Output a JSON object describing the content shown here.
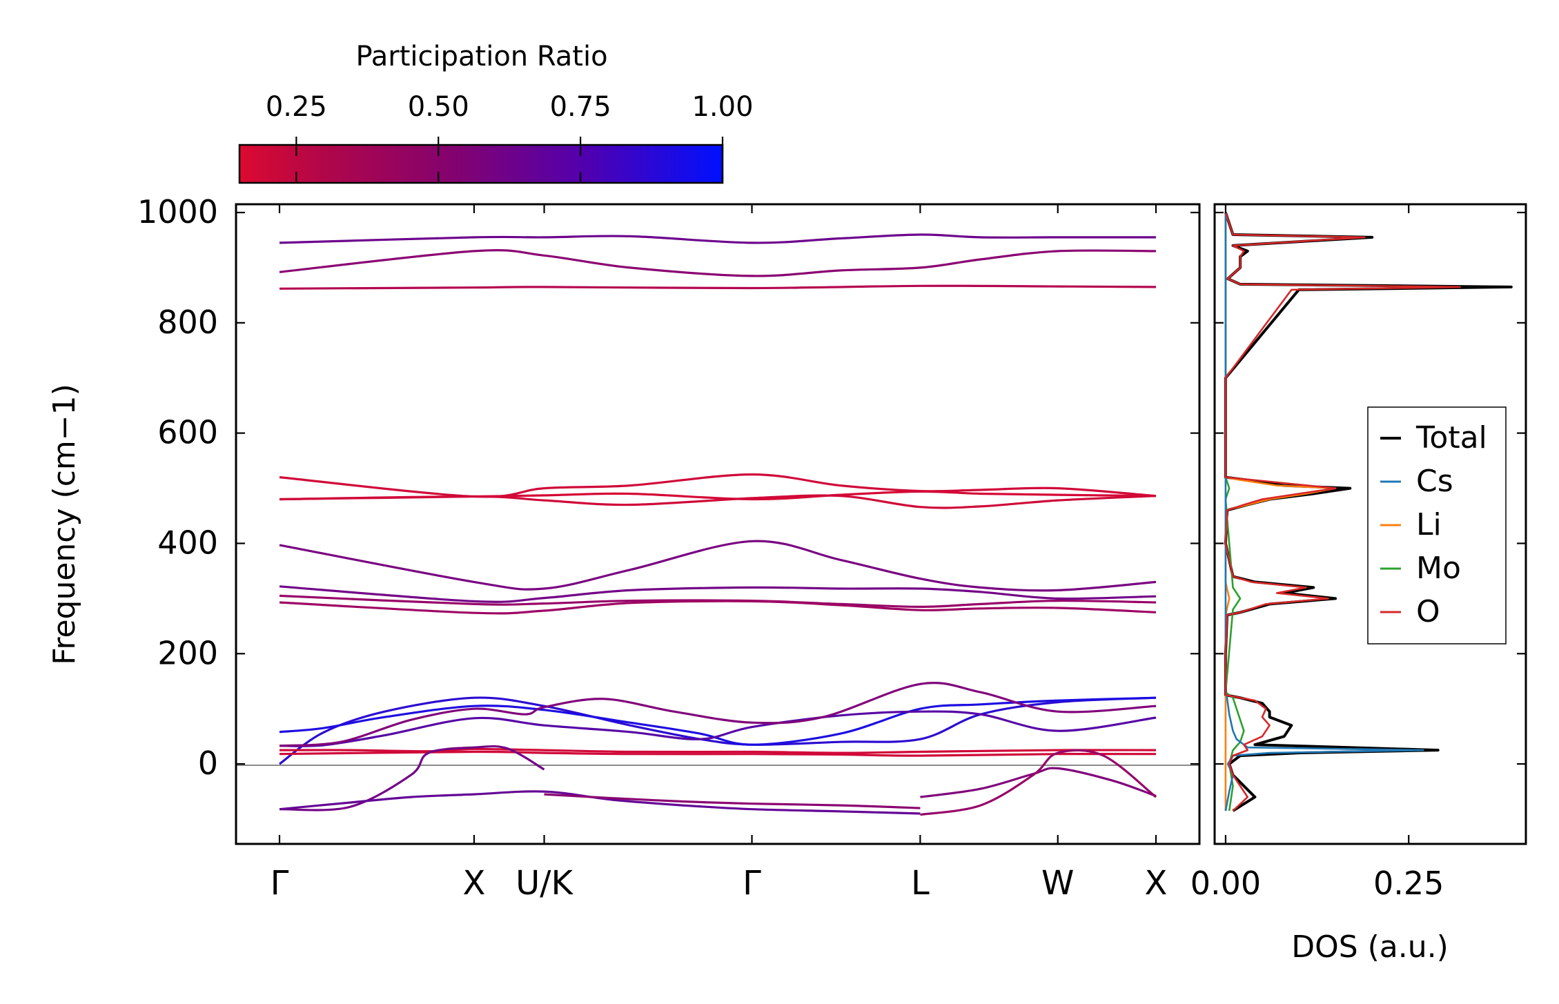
{
  "colorbar": {
    "label": "Participation Ratio",
    "tick_values": [
      0.25,
      0.5,
      0.75,
      1.0
    ],
    "tick_labels": [
      "0.25",
      "0.50",
      "0.75",
      "1.00"
    ],
    "range": [
      0.15,
      1.0
    ],
    "color_low": "#dc0a30",
    "color_high": "#0010ff"
  },
  "chart_data": [
    {
      "type": "line",
      "title": "",
      "xlabel": "",
      "ylabel": "Frequency (cm−1)",
      "ylim": [
        -145,
        1015
      ],
      "yticks": [
        0,
        200,
        400,
        600,
        800,
        1000
      ],
      "ytick_labels": [
        "0",
        "200",
        "400",
        "600",
        "800",
        "1000"
      ],
      "kpath": [
        "Γ",
        "X",
        "U/K",
        "Γ",
        "L",
        "W",
        "X"
      ],
      "kpath_positions": [
        0,
        0.222,
        0.302,
        0.539,
        0.731,
        0.888,
        1.0
      ],
      "path_break_after": "L-segment at 0.731",
      "zero_line": 0,
      "series": [
        {
          "name": "band_top_3",
          "x": [
            0,
            0.222,
            0.302,
            0.4,
            0.539,
            0.64,
            0.731,
            0.8,
            0.888,
            1.0
          ],
          "y": [
            945,
            955,
            955,
            957,
            945,
            953,
            960,
            955,
            955,
            955
          ],
          "pr": 0.62
        },
        {
          "name": "band_top_2",
          "x": [
            0,
            0.222,
            0.302,
            0.4,
            0.539,
            0.64,
            0.731,
            0.8,
            0.888,
            1.0
          ],
          "y": [
            892,
            930,
            922,
            900,
            885,
            895,
            900,
            915,
            930,
            930
          ],
          "pr": 0.5
        },
        {
          "name": "band_top_1",
          "x": [
            0,
            0.222,
            0.302,
            0.539,
            0.731,
            0.888,
            1.0
          ],
          "y": [
            862,
            864,
            865,
            863,
            867,
            866,
            865
          ],
          "pr": 0.32
        },
        {
          "name": "band_500_a",
          "x": [
            0,
            0.222,
            0.302,
            0.4,
            0.539,
            0.64,
            0.731,
            0.8,
            0.888,
            1.0
          ],
          "y": [
            520,
            485,
            500,
            505,
            525,
            505,
            495,
            497,
            500,
            486
          ],
          "pr": 0.2
        },
        {
          "name": "band_500_b",
          "x": [
            0,
            0.222,
            0.302,
            0.4,
            0.539,
            0.64,
            0.731,
            0.8,
            0.888,
            1.0
          ],
          "y": [
            480,
            485,
            487,
            490,
            480,
            488,
            494,
            490,
            488,
            486
          ],
          "pr": 0.18
        },
        {
          "name": "band_500_c",
          "x": [
            0,
            0.222,
            0.302,
            0.4,
            0.539,
            0.64,
            0.731,
            0.8,
            0.888,
            1.0
          ],
          "y": [
            480,
            485,
            478,
            470,
            482,
            486,
            466,
            467,
            478,
            486
          ],
          "pr": 0.2
        },
        {
          "name": "band_400",
          "x": [
            0,
            0.222,
            0.302,
            0.4,
            0.539,
            0.64,
            0.731,
            0.8,
            0.888,
            1.0
          ],
          "y": [
            397,
            330,
            318,
            352,
            404,
            370,
            336,
            320,
            315,
            330
          ],
          "pr": 0.58
        },
        {
          "name": "band_320",
          "x": [
            0,
            0.222,
            0.302,
            0.4,
            0.539,
            0.64,
            0.731,
            0.8,
            0.888,
            1.0
          ],
          "y": [
            322,
            295,
            301,
            315,
            320,
            318,
            318,
            312,
            300,
            304
          ],
          "pr": 0.6
        },
        {
          "name": "band_300",
          "x": [
            0,
            0.222,
            0.302,
            0.4,
            0.539,
            0.64,
            0.731,
            0.8,
            0.888,
            1.0
          ],
          "y": [
            305,
            290,
            291,
            296,
            296,
            290,
            285,
            290,
            296,
            293
          ],
          "pr": 0.45
        },
        {
          "name": "band_290",
          "x": [
            0,
            0.222,
            0.302,
            0.4,
            0.539,
            0.64,
            0.731,
            0.8,
            0.888,
            1.0
          ],
          "y": [
            293,
            274,
            278,
            292,
            295,
            288,
            279,
            282,
            283,
            275
          ],
          "pr": 0.42
        },
        {
          "name": "ac_1",
          "x": [
            0,
            0.05,
            0.12,
            0.222,
            0.302,
            0.4,
            0.48,
            0.539,
            0.64,
            0.731,
            0.8,
            0.888,
            1.0
          ],
          "y": [
            0,
            57,
            95,
            120,
            105,
            70,
            45,
            35,
            40,
            45,
            90,
            112,
            120
          ],
          "pr": 0.85
        },
        {
          "name": "ac_2",
          "x": [
            0,
            0.05,
            0.12,
            0.222,
            0.302,
            0.4,
            0.48,
            0.539,
            0.64,
            0.731,
            0.8,
            0.888,
            1.0
          ],
          "y": [
            58,
            65,
            85,
            105,
            98,
            75,
            55,
            35,
            55,
            100,
            108,
            115,
            120
          ],
          "pr": 0.9
        },
        {
          "name": "ac_3",
          "x": [
            0,
            0.05,
            0.12,
            0.222,
            0.302,
            0.4,
            0.48,
            0.539,
            0.64,
            0.731,
            0.8,
            0.888,
            1.0
          ],
          "y": [
            33,
            34,
            52,
            83,
            70,
            58,
            45,
            67,
            88,
            95,
            90,
            60,
            84
          ],
          "pr": 0.7
        },
        {
          "name": "ac_4",
          "x": [
            0,
            0.07,
            0.15,
            0.222,
            0.28,
            0.302,
            0.37,
            0.45,
            0.539,
            0.62,
            0.731,
            0.8,
            0.888,
            1.0
          ],
          "y": [
            33,
            40,
            80,
            100,
            90,
            103,
            118,
            95,
            75,
            85,
            145,
            130,
            95,
            105
          ],
          "pr": 0.55
        },
        {
          "name": "ac_5",
          "x": [
            0,
            0.08,
            0.17,
            0.222,
            0.302,
            0.4,
            0.539,
            0.64,
            0.731,
            0.888,
            1.0
          ],
          "y": [
            25,
            25,
            23,
            27,
            25,
            22,
            22,
            20,
            22,
            25,
            25
          ],
          "pr": 0.2
        },
        {
          "name": "ac_6",
          "x": [
            0,
            0.222,
            0.302,
            0.4,
            0.539,
            0.64,
            0.731,
            0.888,
            1.0
          ],
          "y": [
            18,
            22,
            20,
            18,
            18,
            17,
            15,
            18,
            18
          ],
          "pr": 0.2
        },
        {
          "name": "soft_1",
          "x": [
            0,
            0.08,
            0.15,
            0.17,
            0.222,
            0.26,
            0.302
          ],
          "y": [
            -82,
            -78,
            -20,
            20,
            30,
            28,
            -10
          ],
          "pr": 0.6
        },
        {
          "name": "soft_2",
          "x": [
            0,
            0.08,
            0.15,
            0.222,
            0.302,
            0.38,
            0.46,
            0.539,
            0.64,
            0.731
          ],
          "y": [
            -82,
            -70,
            -60,
            -55,
            -50,
            -65,
            -75,
            -82,
            -86,
            -90
          ],
          "pr": 0.65
        },
        {
          "name": "soft_3",
          "x": [
            0.302,
            0.38,
            0.46,
            0.539,
            0.64,
            0.731
          ],
          "y": [
            -55,
            -62,
            -68,
            -72,
            -75,
            -80
          ],
          "pr": 0.5
        },
        {
          "name": "soft_4",
          "x": [
            0.731,
            0.8,
            0.86,
            0.888,
            0.95,
            1.0
          ],
          "y": [
            -60,
            -45,
            -18,
            -8,
            -30,
            -58
          ],
          "pr": 0.55
        },
        {
          "name": "soft_5",
          "x": [
            0.731,
            0.8,
            0.86,
            0.888,
            0.94,
            1.0
          ],
          "y": [
            -92,
            -75,
            -20,
            20,
            15,
            -60
          ],
          "pr": 0.45
        }
      ]
    },
    {
      "type": "line",
      "title": "",
      "xlabel": "DOS (a.u.)",
      "ylabel": "",
      "xlim": [
        -0.015,
        0.41
      ],
      "ylim": [
        -145,
        1015
      ],
      "xticks": [
        0,
        0.25
      ],
      "xtick_labels": [
        "0.00",
        "0.25"
      ],
      "legend": [
        "Total",
        "Cs",
        "Li",
        "Mo",
        "O"
      ],
      "legend_position": "right",
      "series": [
        {
          "name": "Total",
          "color": "#000000",
          "y": [
            -85,
            -60,
            -40,
            -20,
            0,
            15,
            20,
            25,
            35,
            50,
            70,
            85,
            95,
            110,
            120,
            125,
            200,
            270,
            275,
            290,
            300,
            310,
            320,
            330,
            340,
            400,
            460,
            470,
            480,
            490,
            500,
            505,
            515,
            520,
            700,
            860,
            865,
            870,
            880,
            900,
            920,
            930,
            940,
            955,
            960,
            1000
          ],
          "v": [
            0.01,
            0.04,
            0.025,
            0.01,
            0.005,
            0.02,
            0.1,
            0.29,
            0.04,
            0.08,
            0.09,
            0.06,
            0.06,
            0.05,
            0.02,
            0,
            0,
            0.002,
            0.02,
            0.06,
            0.15,
            0.08,
            0.12,
            0.04,
            0.01,
            0,
            0.002,
            0.03,
            0.06,
            0.12,
            0.17,
            0.08,
            0.03,
            0,
            0,
            0.1,
            0.39,
            0.02,
            0.003,
            0.02,
            0.02,
            0.03,
            0.01,
            0.2,
            0.01,
            0
          ]
        },
        {
          "name": "Cs",
          "color": "#1f77b4",
          "y": [
            -85,
            -50,
            -20,
            0,
            15,
            20,
            25,
            30,
            45,
            60,
            90,
            120,
            130,
            1000
          ],
          "v": [
            0,
            0.005,
            0.01,
            0.003,
            0.01,
            0.06,
            0.27,
            0.03,
            0.015,
            0.01,
            0.005,
            0.002,
            0,
            0
          ]
        },
        {
          "name": "Li",
          "color": "#ff7f0e",
          "y": [
            -85,
            100,
            270,
            300,
            330,
            460,
            470,
            480,
            490,
            500,
            505,
            515,
            520,
            860,
            1000
          ],
          "v": [
            0,
            0,
            0,
            0.005,
            0,
            0,
            0.03,
            0.06,
            0.11,
            0.15,
            0.07,
            0.02,
            0,
            0,
            0
          ]
        },
        {
          "name": "Mo",
          "color": "#2ca02c",
          "y": [
            -85,
            -40,
            0,
            25,
            40,
            60,
            80,
            100,
            120,
            130,
            280,
            300,
            320,
            480,
            500,
            520,
            1000
          ],
          "v": [
            0.005,
            0.01,
            0.005,
            0.01,
            0.02,
            0.025,
            0.02,
            0.015,
            0.01,
            0,
            0.01,
            0.02,
            0.01,
            0,
            0.005,
            0,
            0
          ]
        },
        {
          "name": "O",
          "color": "#d62728",
          "y": [
            -85,
            -60,
            -40,
            -20,
            0,
            15,
            25,
            35,
            50,
            70,
            85,
            100,
            115,
            125,
            200,
            270,
            275,
            290,
            300,
            310,
            320,
            330,
            340,
            400,
            460,
            470,
            480,
            490,
            500,
            520,
            700,
            860,
            865,
            870,
            880,
            900,
            920,
            930,
            940,
            955,
            960,
            1000
          ],
          "v": [
            0.01,
            0.03,
            0.02,
            0.01,
            0.005,
            0.01,
            0.03,
            0.025,
            0.05,
            0.06,
            0.05,
            0.055,
            0.04,
            0,
            0,
            0.002,
            0.02,
            0.055,
            0.14,
            0.07,
            0.11,
            0.035,
            0.01,
            0,
            0.002,
            0.025,
            0.05,
            0.1,
            0.15,
            0,
            0,
            0.09,
            0.32,
            0.02,
            0.003,
            0.02,
            0.02,
            0.025,
            0.01,
            0.19,
            0.01,
            0
          ]
        }
      ]
    }
  ]
}
